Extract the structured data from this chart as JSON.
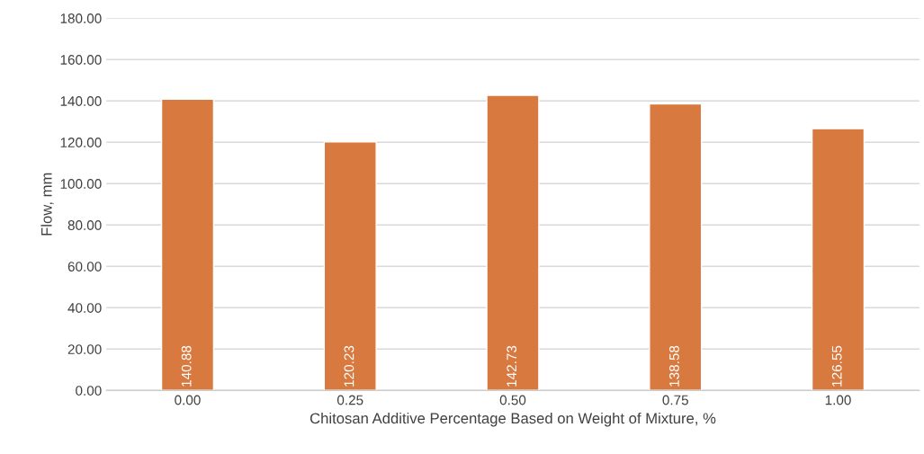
{
  "chart_data": {
    "type": "bar",
    "xlabel": "Chitosan Additive Percentage Based on Weight of Mixture, %",
    "ylabel": "Flow, mm",
    "categories": [
      "0.00",
      "0.25",
      "0.50",
      "0.75",
      "1.00"
    ],
    "values": [
      140.88,
      120.23,
      142.73,
      138.58,
      126.55
    ],
    "color": "#d87a3f",
    "ylim": [
      0,
      180
    ],
    "yticks": [
      {
        "value": 0,
        "label": "0.00"
      },
      {
        "value": 20,
        "label": "20.00"
      },
      {
        "value": 40,
        "label": "40.00"
      },
      {
        "value": 60,
        "label": "60.00"
      },
      {
        "value": 80,
        "label": "80.00"
      },
      {
        "value": 100,
        "label": "100.00"
      },
      {
        "value": 120,
        "label": "120.00"
      },
      {
        "value": 140,
        "label": "140.00"
      },
      {
        "value": 160,
        "label": "160.00"
      },
      {
        "value": 180,
        "label": "180.00"
      }
    ],
    "grid": "y",
    "data_labels": true,
    "legend": false
  }
}
